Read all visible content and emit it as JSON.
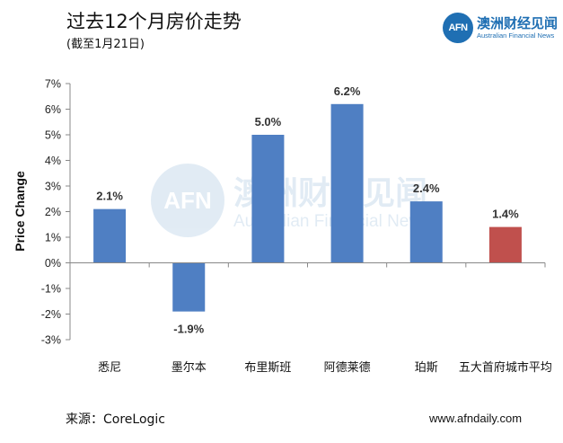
{
  "header": {
    "title": "过去12个月房价走势",
    "subtitle": "(截至1月21日)"
  },
  "logo": {
    "badge": "AFN",
    "name_cn": "澳洲财经见闻",
    "name_en": "Australian Financial News"
  },
  "footer": {
    "source": "来源：CoreLogic",
    "website": "www.afndaily.com"
  },
  "colors": {
    "bar_default": "#4f7fc3",
    "bar_highlight": "#c0504d",
    "axis": "#888888",
    "brand": "#1f6fb3"
  },
  "chart_data": {
    "type": "bar",
    "title": "过去12个月房价走势",
    "subtitle": "(截至1月21日)",
    "ylabel": "Price Change",
    "xlabel": "",
    "categories": [
      "悉尼",
      "墨尔本",
      "布里斯班",
      "阿德莱德",
      "珀斯",
      "五大首府城市平均"
    ],
    "values": [
      2.1,
      -1.9,
      5.0,
      6.2,
      2.4,
      1.4
    ],
    "data_labels": [
      "2.1%",
      "-1.9%",
      "5.0%",
      "6.2%",
      "2.4%",
      "1.4%"
    ],
    "highlight_index": 5,
    "ylim": [
      -3,
      7
    ],
    "yticks": [
      7,
      6,
      5,
      4,
      3,
      2,
      1,
      0,
      -1,
      -2,
      -3
    ],
    "ytick_labels": [
      "7%",
      "6%",
      "5%",
      "4%",
      "3%",
      "2%",
      "1%",
      "0%",
      "-1%",
      "-2%",
      "-3%"
    ],
    "grid": false,
    "legend": "none"
  }
}
